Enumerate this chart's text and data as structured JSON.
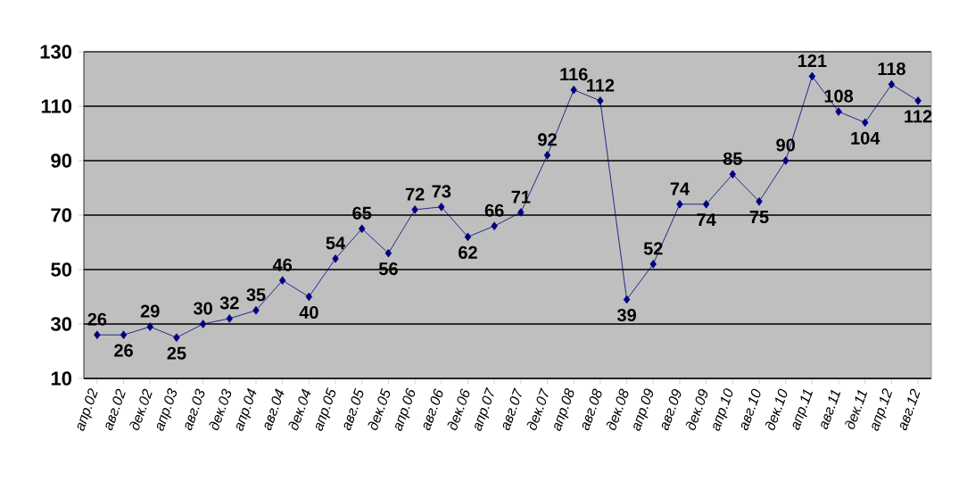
{
  "chart_data": {
    "type": "line",
    "categories": [
      "апр.02",
      "авг.02",
      "дек.02",
      "апр.03",
      "авг.03",
      "дек.03",
      "апр.04",
      "авг.04",
      "дек.04",
      "апр.05",
      "авг.05",
      "дек.05",
      "апр.06",
      "авг.06",
      "дек.06",
      "апр.07",
      "авг.07",
      "дек.07",
      "апр.08",
      "авг.08",
      "дек.08",
      "апр.09",
      "авг.09",
      "дек.09",
      "апр.10",
      "авг.10",
      "дек.10",
      "апр.11",
      "авг.11",
      "дек.11",
      "апр.12",
      "авг.12"
    ],
    "series": [
      {
        "color": "#000080",
        "values": [
          26,
          26,
          29,
          25,
          30,
          32,
          35,
          46,
          40,
          54,
          65,
          56,
          72,
          73,
          62,
          66,
          71,
          92,
          116,
          112,
          39,
          52,
          74,
          74,
          85,
          75,
          90,
          121,
          108,
          104,
          118,
          112
        ]
      }
    ],
    "ylim": [
      10,
      130
    ],
    "yticks": [
      10,
      30,
      50,
      70,
      90,
      110,
      130
    ],
    "grid": "y",
    "marker": "diamond",
    "data_labels": true
  }
}
